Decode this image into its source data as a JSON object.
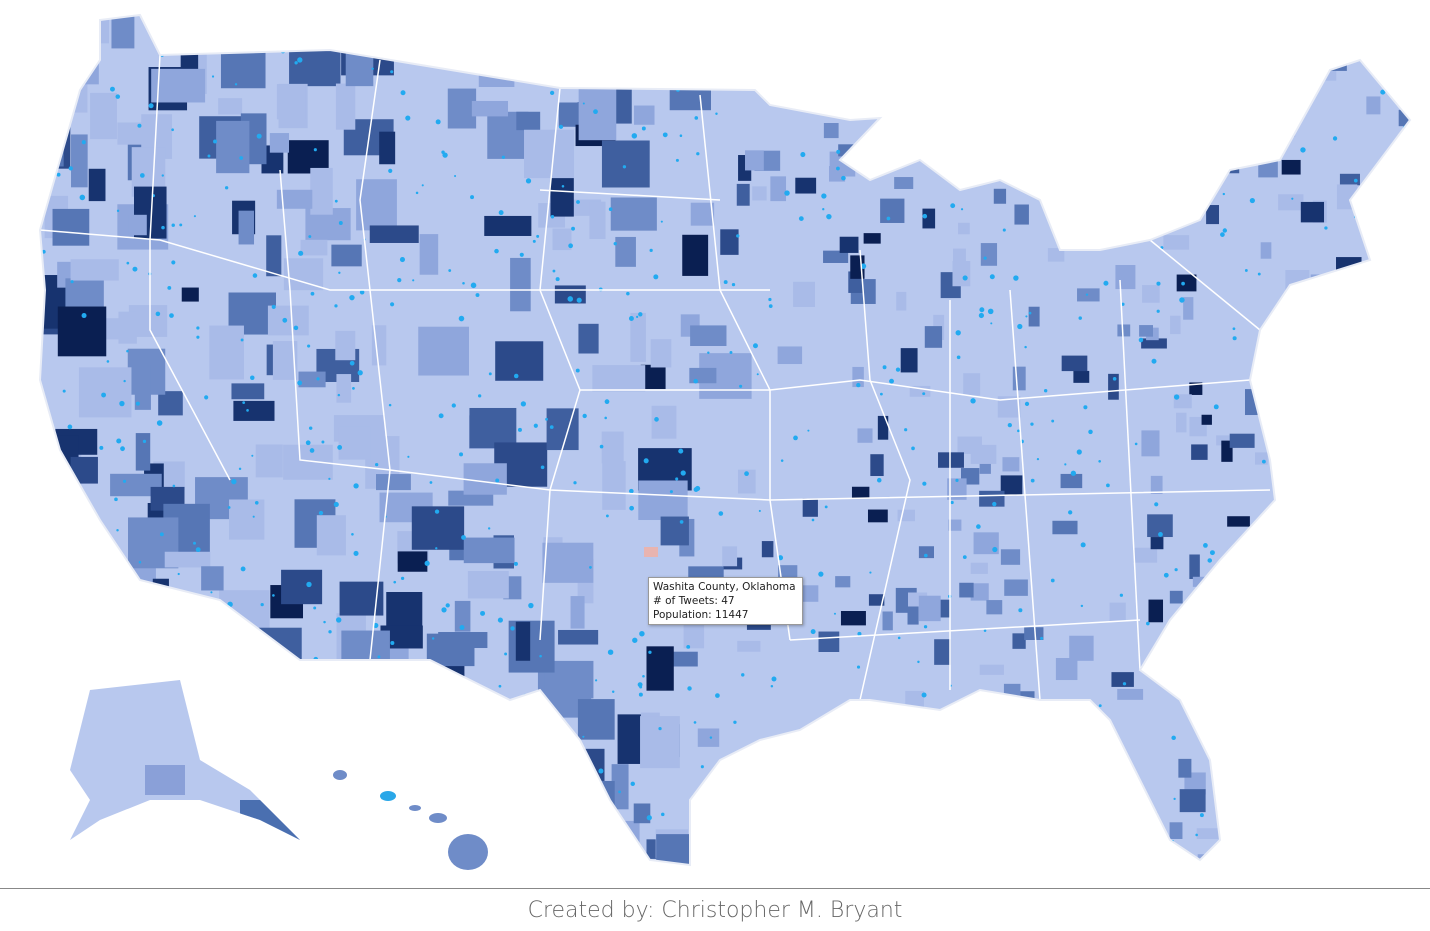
{
  "tooltip": {
    "lines": [
      "Washita County, Oklahoma",
      "# of Tweets: 47",
      "Population: 11447"
    ]
  },
  "footer": {
    "credit": "Created by: Christopher M. Bryant"
  }
}
